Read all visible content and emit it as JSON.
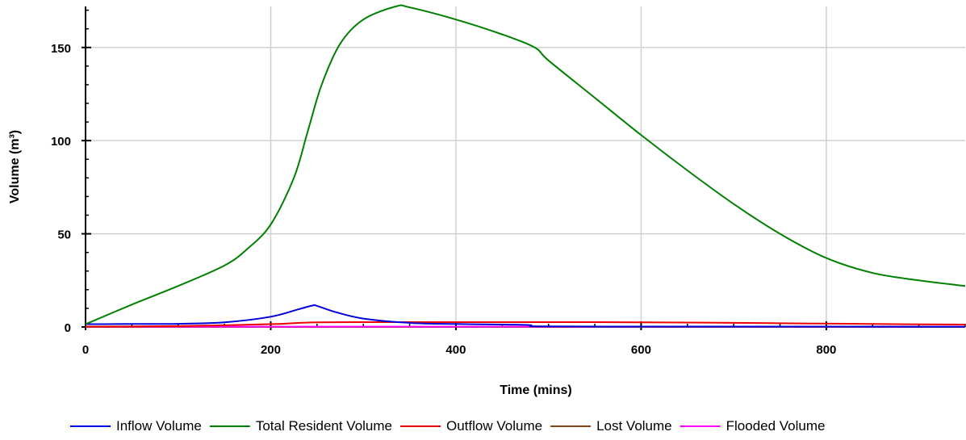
{
  "chart_data": {
    "type": "line",
    "xlabel": "Time (mins)",
    "ylabel": "Volume (m³)",
    "xlim": [
      0,
      950
    ],
    "ylim": [
      0,
      172
    ],
    "x_ticks": [
      0,
      200,
      400,
      600,
      800
    ],
    "y_ticks": [
      0,
      50,
      100,
      150
    ],
    "grid": true,
    "legend_position": "bottom",
    "series": [
      {
        "name": "Inflow Volume",
        "color": "#0000dd",
        "x": [
          0,
          50,
          100,
          150,
          200,
          230,
          245,
          250,
          270,
          300,
          350,
          400,
          450,
          480,
          490,
          600,
          700,
          800,
          950
        ],
        "y": [
          1.5,
          1.6,
          1.7,
          2.5,
          5.5,
          9.5,
          11.5,
          11.3,
          8.0,
          4.5,
          2.2,
          1.6,
          1.3,
          1.0,
          0.3,
          0.2,
          0.2,
          0.2,
          0.1
        ]
      },
      {
        "name": "Total Resident Volume",
        "color": "#008000",
        "x": [
          0,
          50,
          100,
          150,
          175,
          200,
          225,
          240,
          255,
          275,
          300,
          335,
          350,
          400,
          450,
          485,
          500,
          550,
          600,
          650,
          700,
          750,
          800,
          850,
          900,
          950
        ],
        "y": [
          1.5,
          12,
          22,
          33,
          42,
          55,
          80,
          105,
          130,
          152,
          165,
          172,
          171.5,
          165,
          157,
          150,
          143,
          123,
          103,
          84,
          66,
          50,
          37,
          29,
          25,
          22
        ]
      },
      {
        "name": "Outflow Volume",
        "color": "#ee0000",
        "x": [
          0,
          100,
          200,
          250,
          350,
          450,
          550,
          650,
          750,
          850,
          950
        ],
        "y": [
          0.2,
          0.5,
          1.5,
          2.5,
          2.6,
          2.6,
          2.6,
          2.4,
          2.0,
          1.6,
          1.3
        ]
      },
      {
        "name": "Lost Volume",
        "color": "#8b4513",
        "x": [
          0,
          950
        ],
        "y": [
          0,
          0
        ]
      },
      {
        "name": "Flooded Volume",
        "color": "#ff00ff",
        "x": [
          0,
          950
        ],
        "y": [
          0.15,
          0.15
        ]
      }
    ]
  }
}
